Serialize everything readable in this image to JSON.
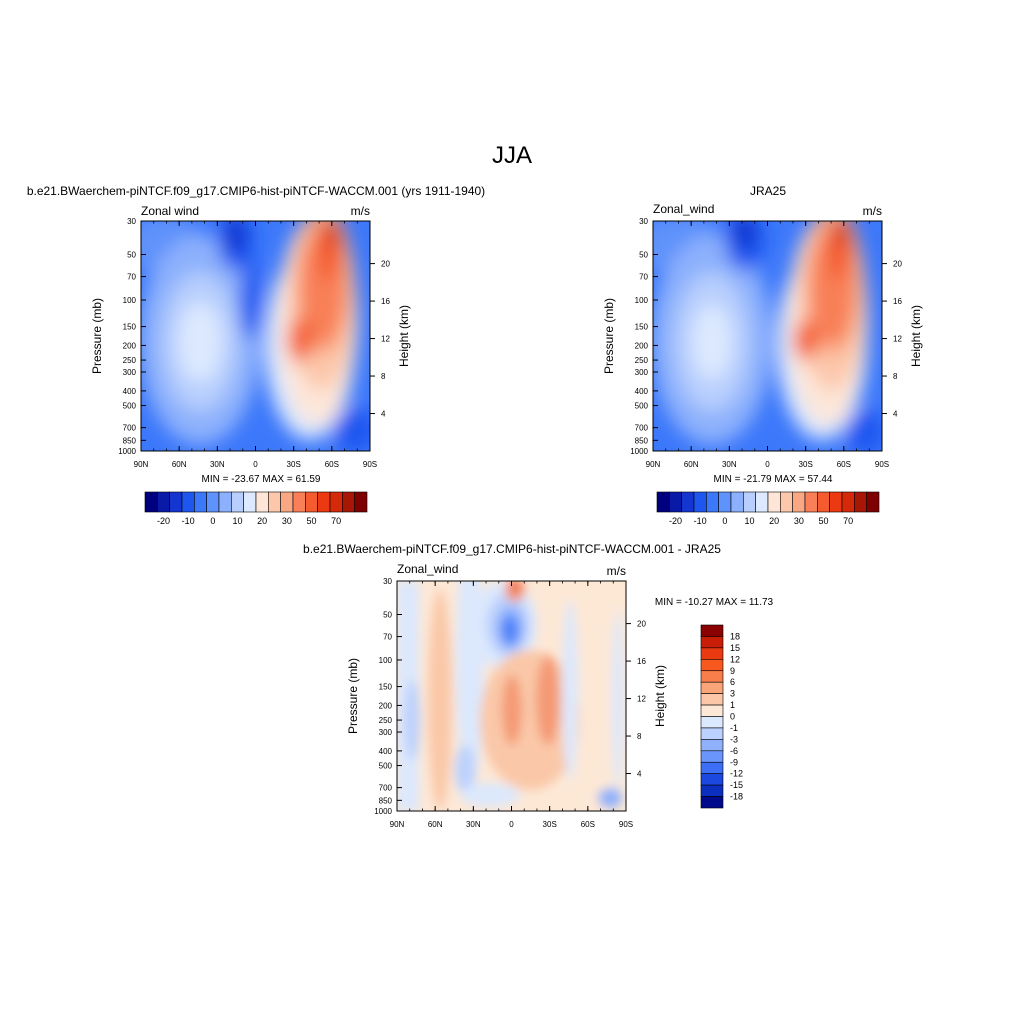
{
  "figure_title": "JJA",
  "colors": {
    "neg": [
      "#1e56f0",
      "#3c78fa",
      "#5f92fb",
      "#8cb0fc",
      "#b8cffd",
      "#dde9fe"
    ],
    "pos": [
      "#fde6d8",
      "#fcc7ab",
      "#faa883",
      "#f87f57",
      "#f45b2f",
      "#eb3a12",
      "#d42a0a"
    ],
    "diff_neg": [
      "#dce8fd",
      "#bcd1fd",
      "#8fb1fc",
      "#4f82f8"
    ],
    "diff_pos": [
      "#fde8d6",
      "#fac8a8",
      "#f49a74",
      "#ee5a2b"
    ]
  },
  "chart_data": [
    {
      "type": "contour",
      "title": "b.e21.BWaerchem-piNTCF.f09_g17.CMIP6-hist-piNTCF-WACCM.001 (yrs 1911-1940)",
      "left_label": "Zonal wind",
      "right_label": "m/s",
      "ylabel": "Pressure (mb)",
      "y2label": "Height (km)",
      "x_ticks": [
        "90N",
        "60N",
        "30N",
        "0",
        "30S",
        "60S",
        "90S"
      ],
      "y_ticks": [
        "30",
        "50",
        "70",
        "100",
        "150",
        "200",
        "250",
        "300",
        "400",
        "500",
        "700",
        "850",
        "1000"
      ],
      "y2_ticks": [
        "20",
        "16",
        "12",
        "8",
        "4"
      ],
      "stats": "MIN = -23.67  MAX =  61.59",
      "colorbar_labels": [
        "-20",
        "-10",
        "0",
        "10",
        "20",
        "30",
        "50",
        "70"
      ]
    },
    {
      "type": "contour",
      "title": "JRA25",
      "left_label": "Zonal_wind",
      "right_label": "m/s",
      "ylabel": "Pressure (mb)",
      "y2label": "Height (km)",
      "x_ticks": [
        "90N",
        "60N",
        "30N",
        "0",
        "30S",
        "60S",
        "90S"
      ],
      "y_ticks": [
        "30",
        "50",
        "70",
        "100",
        "150",
        "200",
        "250",
        "300",
        "400",
        "500",
        "700",
        "850",
        "1000"
      ],
      "y2_ticks": [
        "20",
        "16",
        "12",
        "8",
        "4"
      ],
      "stats": "MIN = -21.79  MAX =  57.44",
      "colorbar_labels": [
        "-20",
        "-10",
        "0",
        "10",
        "20",
        "30",
        "50",
        "70"
      ]
    },
    {
      "type": "contour",
      "title": "b.e21.BWaerchem-piNTCF.f09_g17.CMIP6-hist-piNTCF-WACCM.001 - JRA25",
      "left_label": "Zonal_wind",
      "right_label": "m/s",
      "ylabel": "Pressure (mb)",
      "y2label": "Height (km)",
      "x_ticks": [
        "90N",
        "60N",
        "30N",
        "0",
        "30S",
        "60S",
        "90S"
      ],
      "y_ticks": [
        "30",
        "50",
        "70",
        "100",
        "150",
        "200",
        "250",
        "300",
        "400",
        "500",
        "700",
        "850",
        "1000"
      ],
      "y2_ticks": [
        "20",
        "16",
        "12",
        "8",
        "4"
      ],
      "stats": "MIN = -10.27  MAX =  11.73",
      "colorbar_labels": [
        "18",
        "15",
        "12",
        "9",
        "6",
        "3",
        "1",
        "0",
        "-1",
        "-3",
        "-6",
        "-9",
        "-12",
        "-15",
        "-18"
      ]
    }
  ]
}
